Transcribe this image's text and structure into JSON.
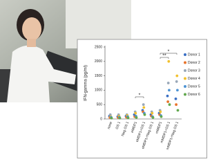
{
  "chart_data": {
    "type": "scatter",
    "y_label": "IFN-gamma (pg/ml)",
    "categories": [
      "none",
      "GS 1",
      "Neg GS 1",
      "eMDP1",
      "eMDP1+GS 1",
      "eMDP1+Neg GS 1",
      "mMDP1",
      "mMDP1+GS 1",
      "mMDP1+Neg GS 1"
    ],
    "series": [
      {
        "name": "Donor 1",
        "color": "#3a6fc4",
        "values": [
          100,
          80,
          100,
          150,
          300,
          150,
          200,
          800,
          700
        ]
      },
      {
        "name": "Donor 2",
        "color": "#e8742c",
        "values": [
          50,
          50,
          60,
          80,
          250,
          100,
          150,
          600,
          500
        ]
      },
      {
        "name": "Donor 3",
        "color": "#9aa8b8",
        "values": [
          150,
          150,
          150,
          250,
          500,
          250,
          300,
          1250,
          1300
        ]
      },
      {
        "name": "Donor 4",
        "color": "#f2c12e",
        "values": [
          80,
          100,
          120,
          200,
          400,
          200,
          250,
          2000,
          1500
        ]
      },
      {
        "name": "Donor 5",
        "color": "#4f94d4",
        "values": [
          60,
          60,
          80,
          100,
          200,
          80,
          120,
          1000,
          1000
        ]
      },
      {
        "name": "Donor 6",
        "color": "#62a84e",
        "values": [
          30,
          30,
          40,
          50,
          150,
          50,
          80,
          500,
          300
        ]
      }
    ],
    "ylim": [
      0,
      2500
    ],
    "yticks": [
      0,
      500,
      1000,
      1500,
      2000,
      2500
    ],
    "annotations": [
      "*",
      "**",
      "*"
    ]
  }
}
